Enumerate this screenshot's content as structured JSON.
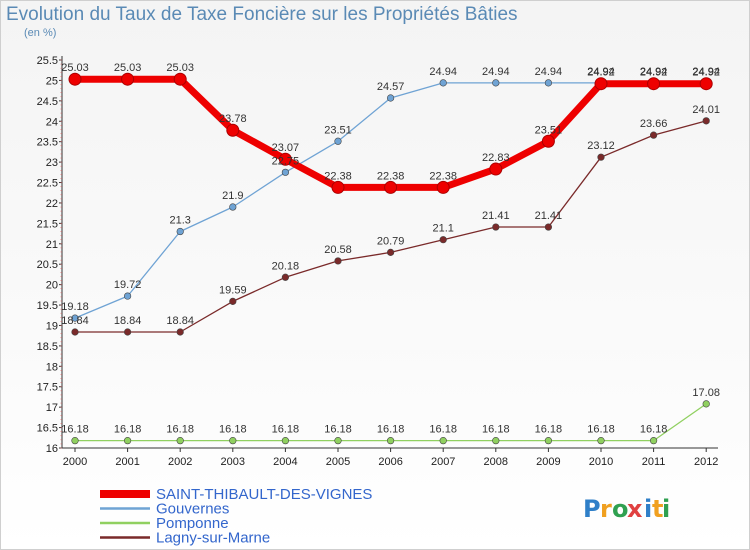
{
  "chart_data": {
    "type": "line",
    "title": "Evolution du Taux de Taxe Foncière sur les Propriétés Bâties",
    "subtitle": "(en %)",
    "x": [
      "2000",
      "2001",
      "2002",
      "2003",
      "2004",
      "2005",
      "2006",
      "2007",
      "2008",
      "2009",
      "2010",
      "2011",
      "2012"
    ],
    "yticks": [
      "16",
      "16.5",
      "17",
      "17.5",
      "18",
      "18.5",
      "19",
      "19.5",
      "20",
      "20.5",
      "21",
      "21.5",
      "22",
      "22.5",
      "23",
      "23.5",
      "24",
      "24.5",
      "25",
      "25.5"
    ],
    "ylim": [
      16,
      25.5
    ],
    "legend_position": "bottom-left",
    "series": [
      {
        "name": "Gouvernes",
        "color": "#6fa3d4",
        "values": [
          19.18,
          19.72,
          21.3,
          21.9,
          22.75,
          23.51,
          24.57,
          24.94,
          24.94,
          24.94,
          24.94,
          24.94,
          24.94
        ],
        "labels": [
          "19.18",
          "19.72",
          "21.3",
          "21.9",
          "22.75",
          "23.51",
          "24.57",
          "24.94",
          "24.94",
          "24.94",
          "24.94",
          "24.94",
          "24.94"
        ]
      },
      {
        "name": "Pomponne",
        "color": "#90d060",
        "values": [
          16.18,
          16.18,
          16.18,
          16.18,
          16.18,
          16.18,
          16.18,
          16.18,
          16.18,
          16.18,
          16.18,
          16.18,
          17.08
        ],
        "labels": [
          "16.18",
          "16.18",
          "16.18",
          "16.18",
          "16.18",
          "16.18",
          "16.18",
          "16.18",
          "16.18",
          "16.18",
          "16.18",
          "16.18",
          "17.08"
        ]
      },
      {
        "name": "Lagny-sur-Marne",
        "color": "#7a2a2a",
        "values": [
          18.84,
          18.84,
          18.84,
          19.59,
          20.18,
          20.58,
          20.79,
          21.1,
          21.41,
          21.41,
          23.12,
          23.66,
          24.01
        ],
        "labels": [
          "18.84",
          "18.84",
          "18.84",
          "19.59",
          "20.18",
          "20.58",
          "20.79",
          "21.1",
          "21.41",
          "21.41",
          "23.12",
          "23.66",
          "24.01"
        ]
      },
      {
        "name": "SAINT-THIBAULT-DES-VIGNES",
        "color": "#ee0000",
        "values": [
          25.03,
          25.03,
          25.03,
          23.78,
          23.07,
          22.38,
          22.38,
          22.38,
          22.83,
          23.51,
          24.92,
          24.92,
          24.92
        ],
        "labels": [
          "25.03",
          "25.03",
          "25.03",
          "23.78",
          "23.07",
          "22.38",
          "22.38",
          "22.38",
          "22.83",
          "23.51",
          "24.92",
          "24.92",
          "24.92"
        ]
      }
    ],
    "legend": [
      {
        "name": "SAINT-THIBAULT-DES-VIGNES",
        "color": "#ee0000",
        "text_color": "#3366cc"
      },
      {
        "name": "Gouvernes",
        "color": "#6fa3d4",
        "text_color": "#3366cc"
      },
      {
        "name": "Pomponne",
        "color": "#90d060",
        "text_color": "#3366cc"
      },
      {
        "name": "Lagny-sur-Marne",
        "color": "#7a2a2a",
        "text_color": "#3366cc"
      }
    ]
  },
  "logo": {
    "letters": [
      "P",
      "r",
      "o",
      "x",
      "i",
      "t",
      "i"
    ],
    "colors": [
      "#2f7fc8",
      "#f0a020",
      "#2fa050",
      "#e04040",
      "#2f7fc8",
      "#f0a020",
      "#2fa050"
    ]
  }
}
